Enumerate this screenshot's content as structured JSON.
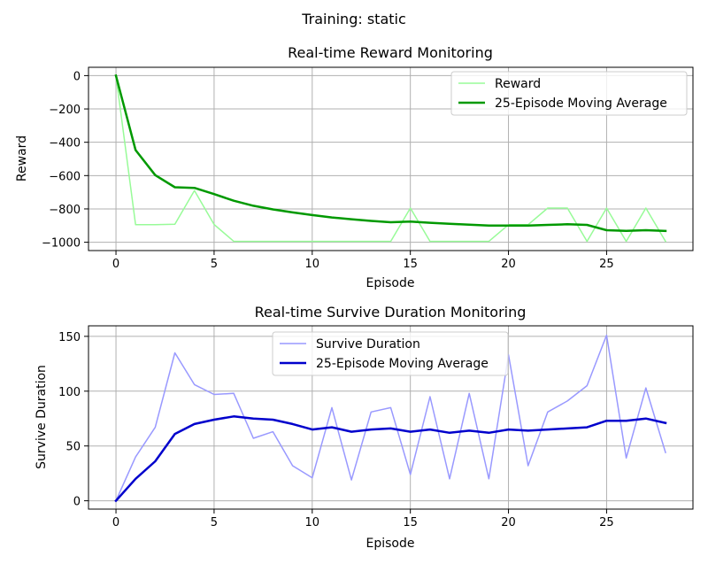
{
  "figure": {
    "suptitle": "Training: static"
  },
  "chart_data": [
    {
      "type": "line",
      "title": "Real-time Reward Monitoring",
      "xlabel": "Episode",
      "ylabel": "Reward",
      "xlim": [
        -1.4,
        29.4
      ],
      "ylim": [
        -1050,
        50
      ],
      "xticks": [
        0,
        5,
        10,
        15,
        20,
        25
      ],
      "yticks": [
        0,
        -200,
        -400,
        -600,
        -800,
        -1000
      ],
      "grid": true,
      "legend_position": "top-right",
      "x": [
        0,
        1,
        2,
        3,
        4,
        5,
        6,
        7,
        8,
        9,
        10,
        11,
        12,
        13,
        14,
        15,
        16,
        17,
        18,
        19,
        20,
        21,
        22,
        23,
        24,
        25,
        26,
        27,
        28
      ],
      "series": [
        {
          "name": "Reward",
          "color": "#98fb98",
          "linewidth": 1.5,
          "values": [
            0,
            -895,
            -895,
            -892,
            -690,
            -893,
            -995,
            -995,
            -995,
            -995,
            -995,
            -995,
            -995,
            -995,
            -995,
            -795,
            -995,
            -995,
            -995,
            -995,
            -895,
            -895,
            -795,
            -795,
            -995,
            -795,
            -995,
            -795,
            -995
          ]
        },
        {
          "name": "25-Episode Moving Average",
          "color": "#009900",
          "linewidth": 2.5,
          "values": [
            0,
            -447,
            -597,
            -670,
            -674,
            -711,
            -751,
            -781,
            -803,
            -821,
            -837,
            -851,
            -862,
            -872,
            -880,
            -876,
            -883,
            -889,
            -895,
            -900,
            -900,
            -900,
            -896,
            -892,
            -896,
            -928,
            -932,
            -928,
            -932
          ]
        }
      ]
    },
    {
      "type": "line",
      "title": "Real-time Survive Duration Monitoring",
      "xlabel": "Episode",
      "ylabel": "Survive Duration",
      "xlim": [
        -1.4,
        29.4
      ],
      "ylim": [
        -7.6,
        159.6
      ],
      "xticks": [
        0,
        5,
        10,
        15,
        20,
        25
      ],
      "yticks": [
        0,
        50,
        100,
        150
      ],
      "grid": true,
      "legend_position": "top-center",
      "x": [
        0,
        1,
        2,
        3,
        4,
        5,
        6,
        7,
        8,
        9,
        10,
        11,
        12,
        13,
        14,
        15,
        16,
        17,
        18,
        19,
        20,
        21,
        22,
        23,
        24,
        25,
        26,
        27,
        28
      ],
      "series": [
        {
          "name": "Survive Duration",
          "color": "#9999ff",
          "linewidth": 1.5,
          "values": [
            0,
            40,
            67,
            135,
            106,
            97,
            98,
            57,
            63,
            32,
            21,
            85,
            19,
            81,
            85,
            24,
            95,
            20,
            98,
            20,
            133,
            32,
            81,
            91,
            105,
            151,
            39,
            103,
            44
          ]
        },
        {
          "name": "25-Episode Moving Average",
          "color": "#0000cc",
          "linewidth": 2.5,
          "values": [
            0,
            20,
            36,
            61,
            70,
            74,
            77,
            75,
            74,
            70,
            65,
            67,
            63,
            65,
            66,
            63,
            65,
            62,
            64,
            62,
            65,
            64,
            65,
            66,
            67,
            73,
            73,
            75,
            71
          ]
        }
      ]
    }
  ]
}
